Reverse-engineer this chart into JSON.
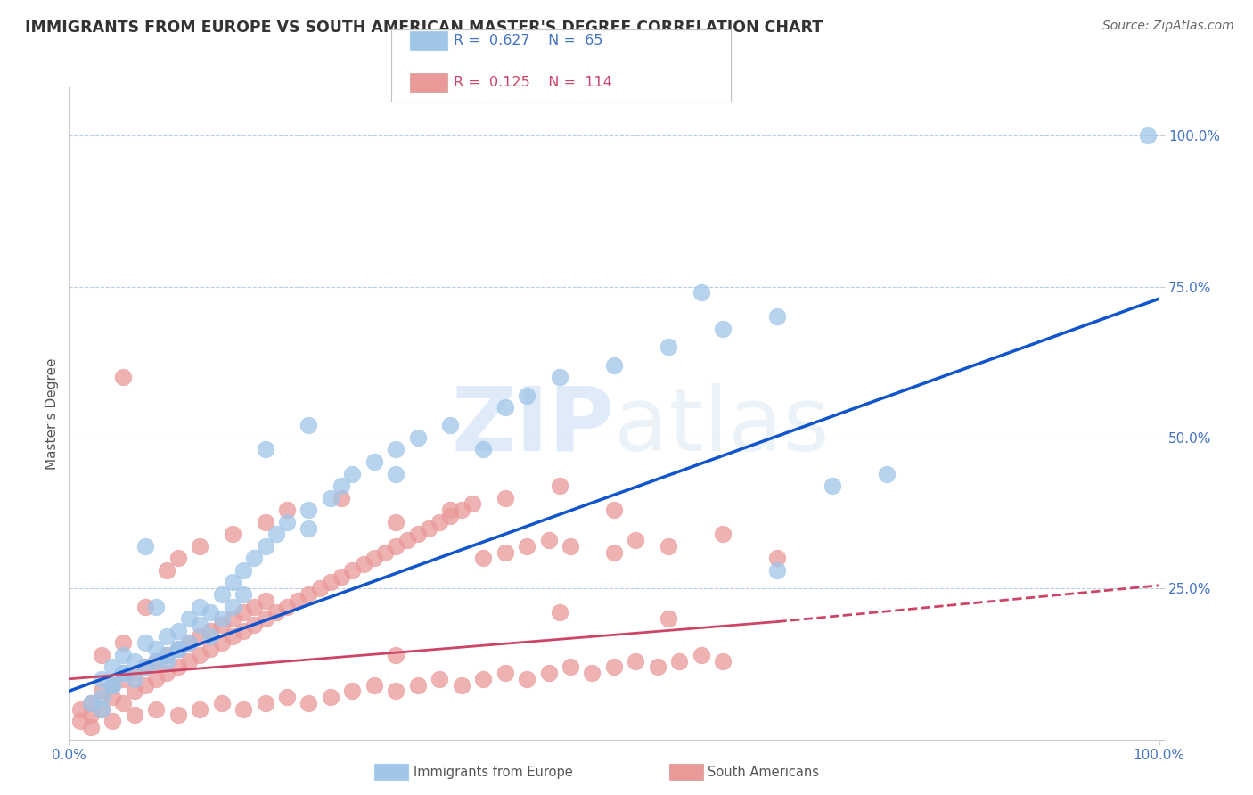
{
  "title": "IMMIGRANTS FROM EUROPE VS SOUTH AMERICAN MASTER'S DEGREE CORRELATION CHART",
  "source": "Source: ZipAtlas.com",
  "ylabel": "Master's Degree",
  "legend_blue_label": "Immigrants from Europe",
  "legend_pink_label": "South Americans",
  "blue_color": "#9fc5e8",
  "pink_color": "#ea9999",
  "blue_face_color": "#9fc5e8",
  "pink_face_color": "#ea9999",
  "blue_line_color": "#1155cc",
  "pink_line_color": "#cc4466",
  "background_color": "#ffffff",
  "grid_color": "#b8cce4",
  "watermark_color": "#cddff0",
  "title_color": "#333333",
  "source_color": "#666666",
  "tick_color": "#4472c4",
  "ylabel_color": "#555555",
  "legend_text_blue": "#4472c4",
  "legend_text_pink": "#cc4466",
  "blue_R": "R = 0.627",
  "blue_N": "N = 65",
  "pink_R": "R = 0.125",
  "pink_N": "N = 114",
  "blue_scatter_x": [
    0.02,
    0.03,
    0.03,
    0.04,
    0.04,
    0.05,
    0.05,
    0.06,
    0.06,
    0.07,
    0.07,
    0.08,
    0.08,
    0.09,
    0.09,
    0.1,
    0.1,
    0.11,
    0.11,
    0.12,
    0.12,
    0.13,
    0.13,
    0.14,
    0.14,
    0.15,
    0.15,
    0.16,
    0.16,
    0.17,
    0.18,
    0.19,
    0.2,
    0.22,
    0.22,
    0.24,
    0.25,
    0.26,
    0.28,
    0.3,
    0.3,
    0.32,
    0.35,
    0.38,
    0.4,
    0.42,
    0.45,
    0.5,
    0.55,
    0.6,
    0.65,
    0.18,
    0.58,
    0.7,
    0.75,
    0.99,
    0.65,
    0.22,
    0.07,
    0.08,
    0.03,
    0.04,
    0.05,
    0.09,
    0.1
  ],
  "blue_scatter_y": [
    0.06,
    0.1,
    0.07,
    0.12,
    0.09,
    0.14,
    0.11,
    0.13,
    0.1,
    0.16,
    0.12,
    0.15,
    0.13,
    0.17,
    0.14,
    0.18,
    0.15,
    0.2,
    0.16,
    0.22,
    0.19,
    0.21,
    0.17,
    0.24,
    0.2,
    0.26,
    0.22,
    0.28,
    0.24,
    0.3,
    0.32,
    0.34,
    0.36,
    0.38,
    0.35,
    0.4,
    0.42,
    0.44,
    0.46,
    0.48,
    0.44,
    0.5,
    0.52,
    0.48,
    0.55,
    0.57,
    0.6,
    0.62,
    0.65,
    0.68,
    0.7,
    0.48,
    0.74,
    0.42,
    0.44,
    1.0,
    0.28,
    0.52,
    0.32,
    0.22,
    0.05,
    0.09,
    0.11,
    0.13,
    0.15
  ],
  "pink_scatter_x": [
    0.01,
    0.01,
    0.02,
    0.02,
    0.03,
    0.03,
    0.04,
    0.04,
    0.05,
    0.05,
    0.06,
    0.06,
    0.07,
    0.07,
    0.08,
    0.08,
    0.09,
    0.09,
    0.1,
    0.1,
    0.11,
    0.11,
    0.12,
    0.12,
    0.13,
    0.13,
    0.14,
    0.14,
    0.15,
    0.15,
    0.16,
    0.16,
    0.17,
    0.17,
    0.18,
    0.18,
    0.19,
    0.2,
    0.21,
    0.22,
    0.23,
    0.24,
    0.25,
    0.26,
    0.27,
    0.28,
    0.29,
    0.3,
    0.31,
    0.32,
    0.33,
    0.34,
    0.35,
    0.36,
    0.37,
    0.38,
    0.4,
    0.42,
    0.44,
    0.46,
    0.5,
    0.52,
    0.55,
    0.6,
    0.65,
    0.03,
    0.05,
    0.07,
    0.09,
    0.1,
    0.12,
    0.15,
    0.18,
    0.2,
    0.25,
    0.3,
    0.35,
    0.4,
    0.45,
    0.5,
    0.02,
    0.04,
    0.06,
    0.08,
    0.1,
    0.12,
    0.14,
    0.16,
    0.18,
    0.2,
    0.22,
    0.24,
    0.26,
    0.28,
    0.3,
    0.32,
    0.34,
    0.36,
    0.38,
    0.4,
    0.42,
    0.44,
    0.46,
    0.48,
    0.5,
    0.52,
    0.54,
    0.56,
    0.58,
    0.6,
    0.05,
    0.45,
    0.55,
    0.3
  ],
  "pink_scatter_y": [
    0.03,
    0.05,
    0.04,
    0.06,
    0.08,
    0.05,
    0.07,
    0.09,
    0.06,
    0.1,
    0.08,
    0.11,
    0.09,
    0.12,
    0.1,
    0.13,
    0.11,
    0.14,
    0.12,
    0.15,
    0.13,
    0.16,
    0.14,
    0.17,
    0.15,
    0.18,
    0.16,
    0.19,
    0.17,
    0.2,
    0.18,
    0.21,
    0.19,
    0.22,
    0.2,
    0.23,
    0.21,
    0.22,
    0.23,
    0.24,
    0.25,
    0.26,
    0.27,
    0.28,
    0.29,
    0.3,
    0.31,
    0.32,
    0.33,
    0.34,
    0.35,
    0.36,
    0.37,
    0.38,
    0.39,
    0.3,
    0.31,
    0.32,
    0.33,
    0.32,
    0.31,
    0.33,
    0.32,
    0.34,
    0.3,
    0.14,
    0.16,
    0.22,
    0.28,
    0.3,
    0.32,
    0.34,
    0.36,
    0.38,
    0.4,
    0.36,
    0.38,
    0.4,
    0.42,
    0.38,
    0.02,
    0.03,
    0.04,
    0.05,
    0.04,
    0.05,
    0.06,
    0.05,
    0.06,
    0.07,
    0.06,
    0.07,
    0.08,
    0.09,
    0.08,
    0.09,
    0.1,
    0.09,
    0.1,
    0.11,
    0.1,
    0.11,
    0.12,
    0.11,
    0.12,
    0.13,
    0.12,
    0.13,
    0.14,
    0.13,
    0.6,
    0.21,
    0.2,
    0.14
  ],
  "blue_line": [
    [
      0.0,
      0.08
    ],
    [
      1.0,
      0.73
    ]
  ],
  "pink_line_solid": [
    [
      0.0,
      0.1
    ],
    [
      0.65,
      0.195
    ]
  ],
  "pink_line_dash": [
    [
      0.65,
      0.195
    ],
    [
      1.0,
      0.255
    ]
  ]
}
